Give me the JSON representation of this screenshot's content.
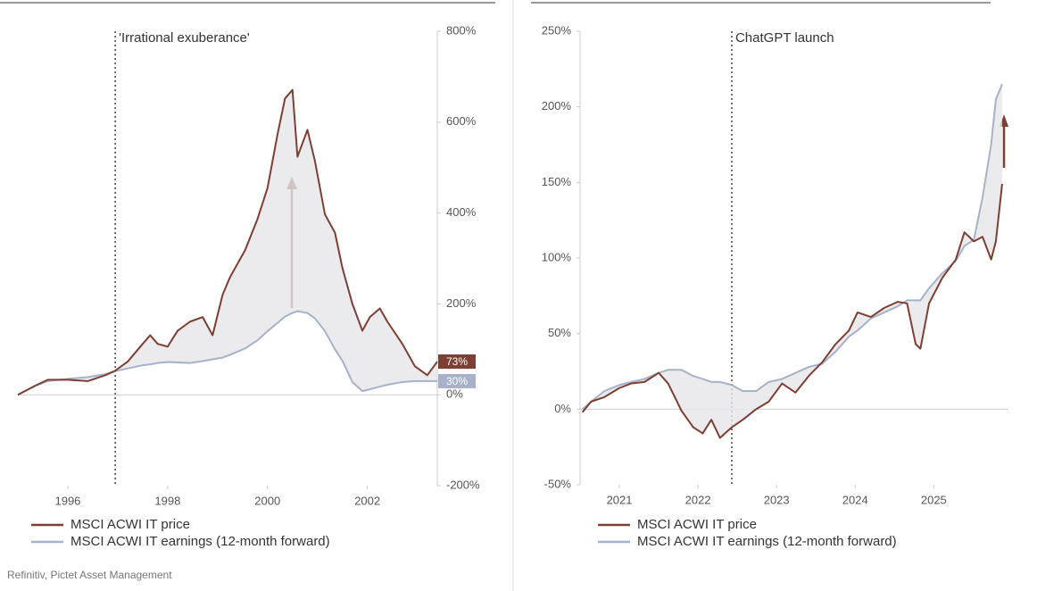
{
  "chart_data": [
    {
      "type": "line",
      "annotation": {
        "text": "'Irrational exuberance'",
        "x": 1996.95
      },
      "x": [
        1995.0,
        1995.35,
        1995.6,
        1996.0,
        1996.4,
        1996.75,
        1996.95,
        1997.2,
        1997.5,
        1997.65,
        1997.8,
        1998.0,
        1998.2,
        1998.45,
        1998.7,
        1998.9,
        1999.1,
        1999.25,
        1999.55,
        1999.8,
        2000.0,
        2000.2,
        2000.35,
        2000.5,
        2000.6,
        2000.8,
        2000.95,
        2001.15,
        2001.35,
        2001.5,
        2001.7,
        2001.9,
        2002.05,
        2002.25,
        2002.4,
        2002.7,
        2002.95,
        2003.2,
        2003.4
      ],
      "series": [
        {
          "name": "MSCI ACWI IT price",
          "color": "#7b3f33",
          "end_label": "73%",
          "values": [
            0,
            20,
            33,
            33,
            30,
            43,
            53,
            73,
            112,
            131,
            112,
            106,
            141,
            161,
            171,
            131,
            220,
            259,
            318,
            387,
            455,
            573,
            652,
            671,
            524,
            583,
            514,
            397,
            357,
            279,
            200,
            141,
            171,
            190,
            161,
            112,
            63,
            43,
            73
          ]
        },
        {
          "name": "MSCI ACWI IT earnings (12-month forward)",
          "color": "#a7b1c8",
          "end_label": "30%",
          "values": [
            0,
            20,
            30,
            35,
            39,
            45,
            52,
            58,
            65,
            67,
            70,
            72,
            71,
            70,
            74,
            78,
            82,
            88,
            102,
            120,
            140,
            158,
            172,
            180,
            184,
            180,
            168,
            140,
            100,
            75,
            28,
            8,
            12,
            18,
            22,
            28,
            30,
            30,
            30
          ]
        }
      ],
      "xlim": [
        1995.0,
        2003.4
      ],
      "xticks": [
        1996,
        1998,
        2000,
        2002
      ],
      "ylim": [
        -200,
        800
      ],
      "yticks": [
        {
          "value": 800,
          "label": "800%"
        },
        {
          "value": 600,
          "label": "600%"
        },
        {
          "value": 400,
          "label": "400%"
        },
        {
          "value": 200,
          "label": "200%"
        },
        {
          "value": 0,
          "label": "0%"
        },
        {
          "value": -200,
          "label": "-200%"
        }
      ]
    },
    {
      "type": "line",
      "annotation": {
        "text": "ChatGPT launch",
        "x": 2022.43
      },
      "x": [
        2020.53,
        2020.64,
        2020.81,
        2021.0,
        2021.15,
        2021.32,
        2021.5,
        2021.62,
        2021.79,
        2021.94,
        2022.06,
        2022.17,
        2022.28,
        2022.43,
        2022.57,
        2022.74,
        2022.9,
        2023.07,
        2023.24,
        2023.41,
        2023.58,
        2023.75,
        2023.92,
        2024.03,
        2024.2,
        2024.37,
        2024.54,
        2024.66,
        2024.77,
        2024.83,
        2024.94,
        2025.11,
        2025.28,
        2025.39,
        2025.51,
        2025.62,
        2025.73,
        2025.79,
        2025.87
      ],
      "series": [
        {
          "name": "MSCI ACWI IT price",
          "color": "#7b3f33",
          "values": [
            -2,
            5,
            8,
            14,
            17,
            18,
            24,
            17,
            -1,
            -12,
            -16,
            -7,
            -19,
            -12,
            -7,
            0,
            5,
            17,
            11,
            22,
            31,
            43,
            52,
            64,
            61,
            67,
            71,
            70,
            43,
            40,
            70,
            87,
            99,
            117,
            111,
            114,
            99,
            111,
            149
          ]
        },
        {
          "name": "MSCI ACWI IT earnings (12-month forward)",
          "color": "#a7b1c8",
          "values": [
            0,
            5,
            12,
            16,
            18,
            20,
            24,
            26,
            26,
            22,
            20,
            18,
            18,
            16,
            12,
            12,
            18,
            20,
            24,
            28,
            30,
            38,
            48,
            52,
            60,
            64,
            68,
            72,
            72,
            72,
            80,
            90,
            98,
            108,
            112,
            140,
            175,
            205,
            215
          ]
        }
      ],
      "xlim": [
        2020.5,
        2025.95
      ],
      "xticks": [
        2021,
        2022,
        2023,
        2024,
        2025
      ],
      "ylim": [
        -50,
        250
      ],
      "yticks": [
        {
          "value": 250,
          "label": "250%"
        },
        {
          "value": 200,
          "label": "200%"
        },
        {
          "value": 150,
          "label": "150%"
        },
        {
          "value": 100,
          "label": "100%"
        },
        {
          "value": 50,
          "label": "50%"
        },
        {
          "value": 0,
          "label": "0%"
        },
        {
          "value": -50,
          "label": "-50%"
        }
      ]
    }
  ],
  "source": "Refinitiv, Pictet Asset Management"
}
